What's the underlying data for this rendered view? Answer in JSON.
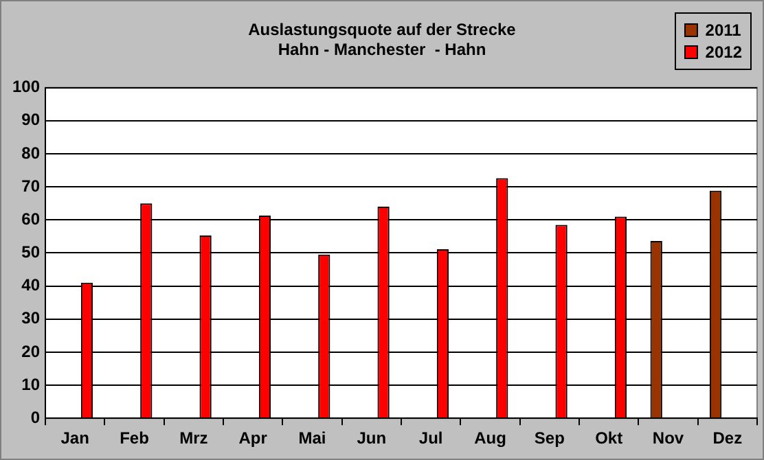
{
  "chart_data": {
    "type": "bar",
    "title": "Auslastungsquote auf der Strecke\nHahn - Manchester  - Hahn",
    "categories": [
      "Jan",
      "Feb",
      "Mrz",
      "Apr",
      "Mai",
      "Jun",
      "Jul",
      "Aug",
      "Sep",
      "Okt",
      "Nov",
      "Dez"
    ],
    "series": [
      {
        "name": "2011",
        "color": "#993300",
        "values": [
          null,
          null,
          null,
          null,
          null,
          null,
          null,
          null,
          null,
          null,
          53.6,
          68.8
        ]
      },
      {
        "name": "2012",
        "color": "#ff0000",
        "values": [
          41,
          65,
          55.3,
          61.3,
          49.5,
          64,
          51.1,
          72.6,
          58.5,
          61,
          null,
          null
        ]
      }
    ],
    "ylim": [
      0,
      100
    ],
    "yticks": [
      0,
      10,
      20,
      30,
      40,
      50,
      60,
      70,
      80,
      90,
      100
    ],
    "grid": "y",
    "legend": "top right"
  }
}
